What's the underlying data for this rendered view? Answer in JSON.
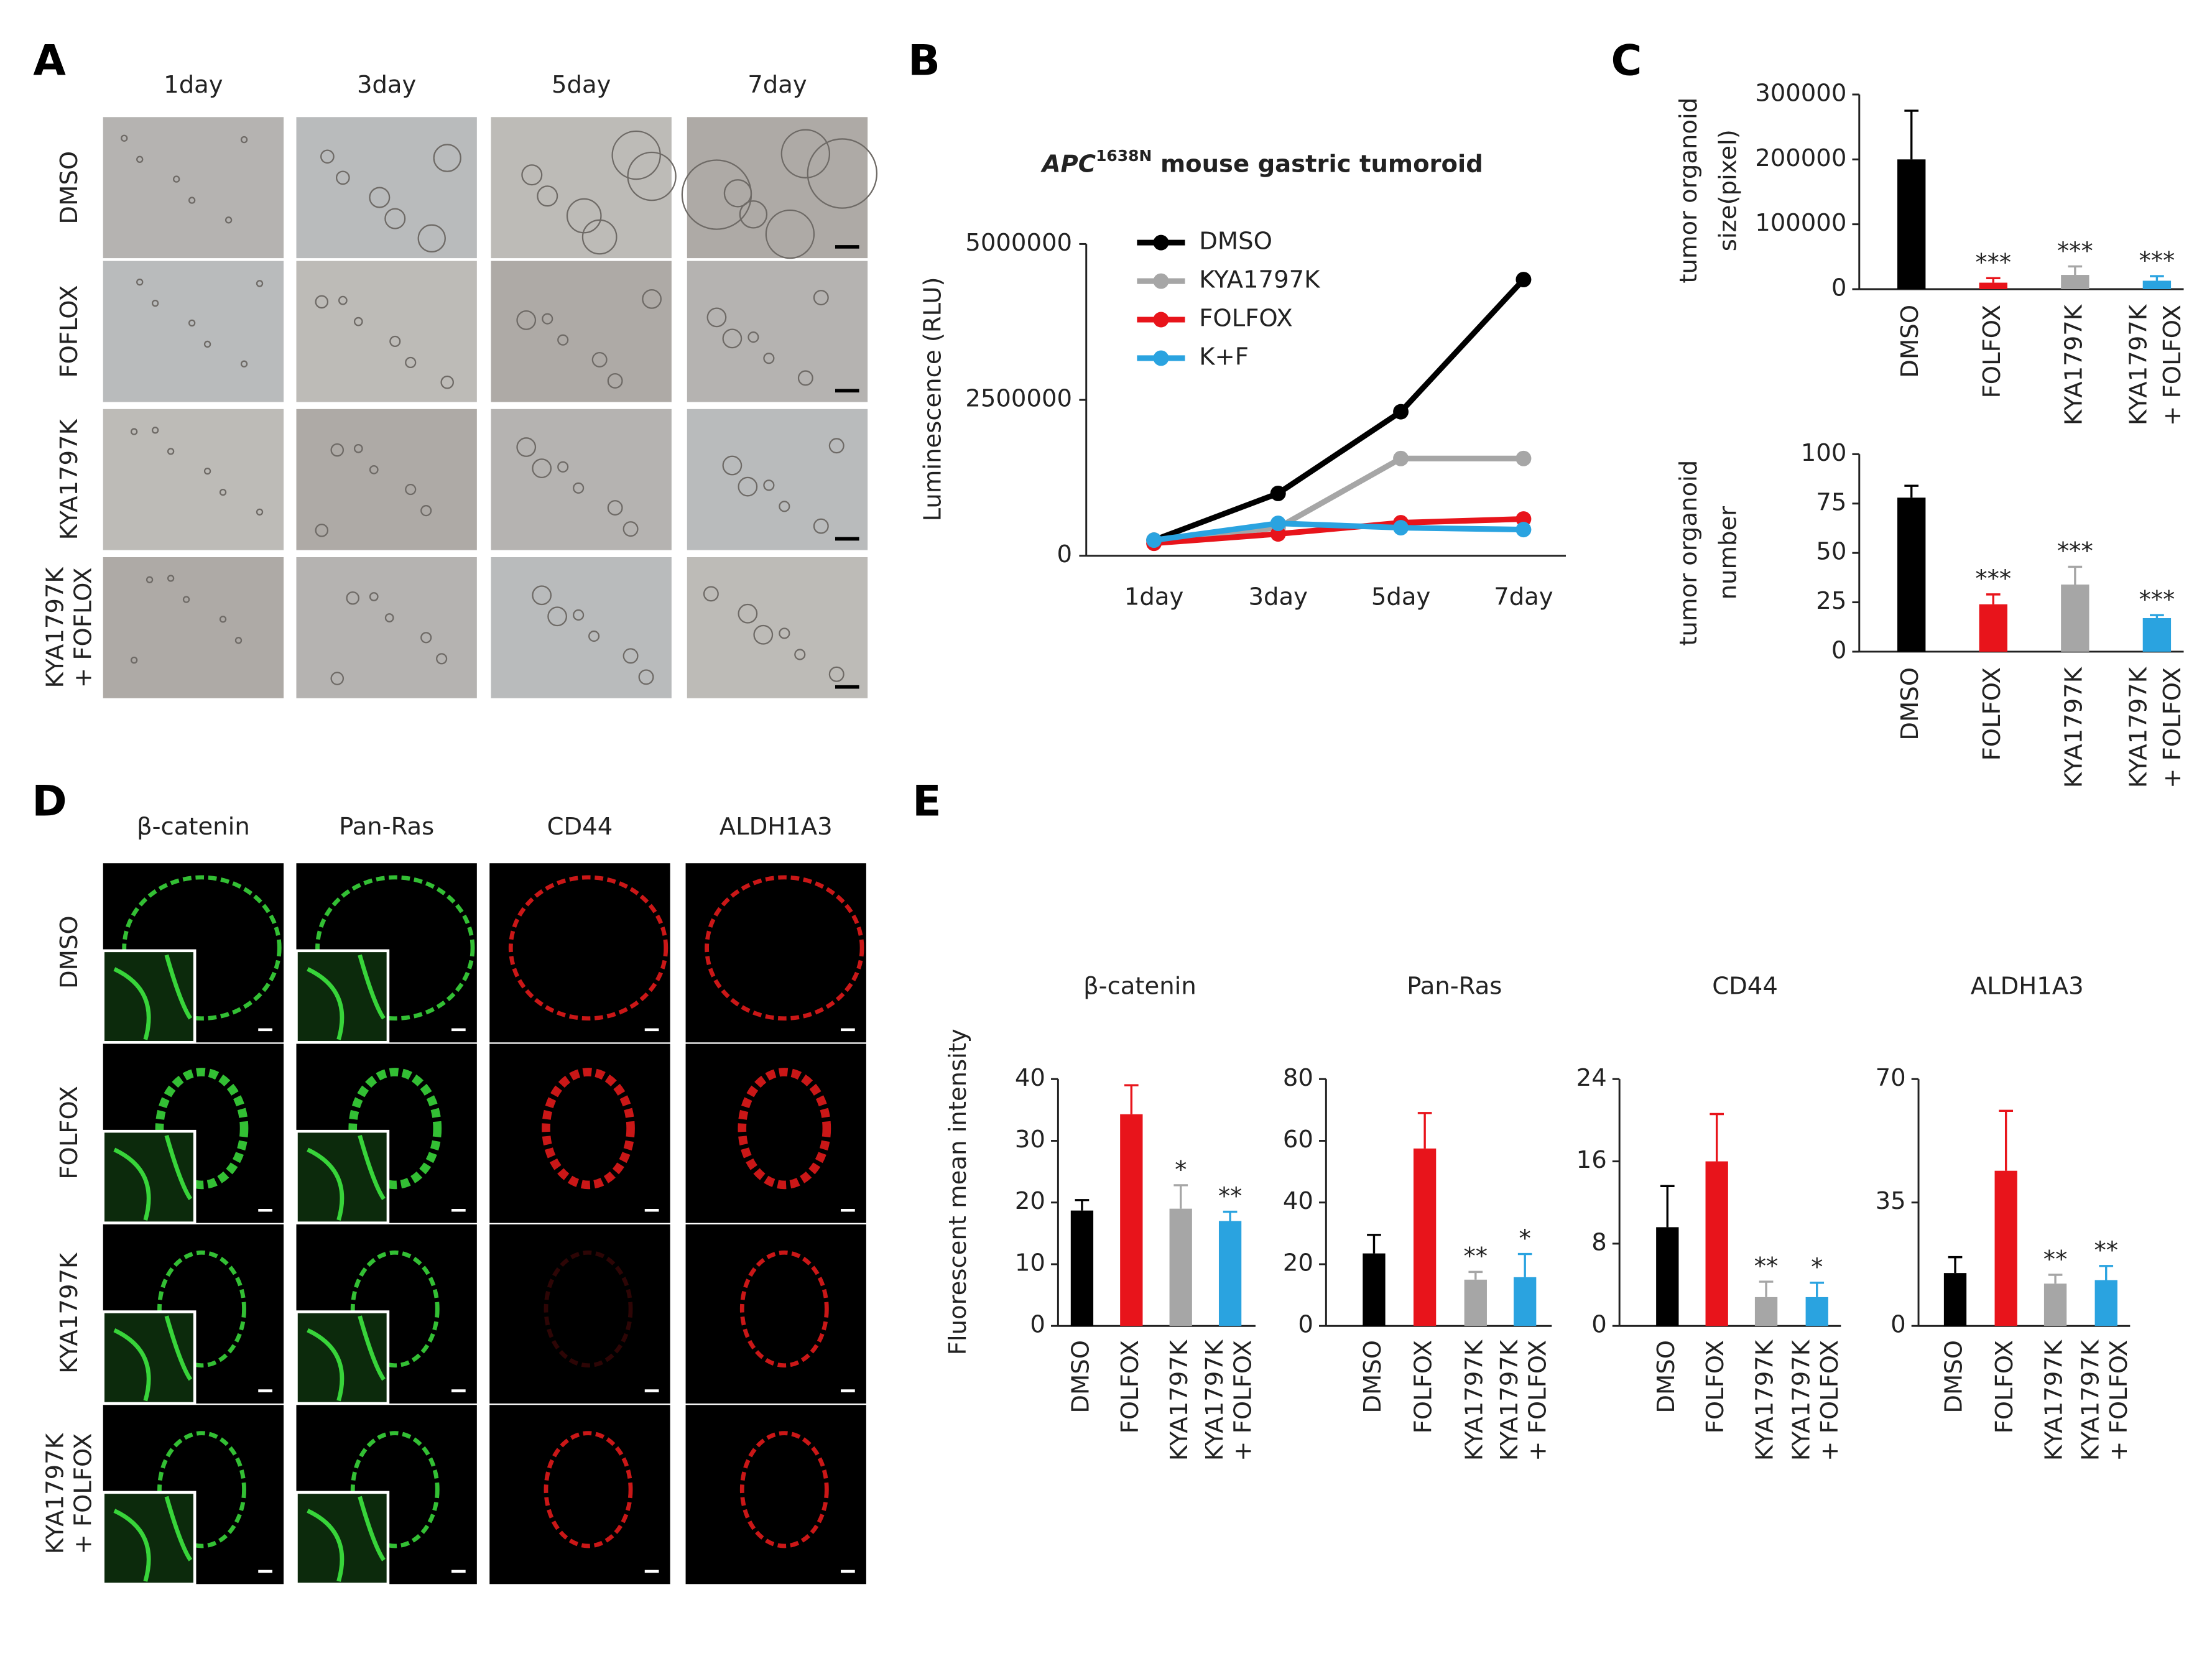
{
  "figure": {
    "panel_letters": [
      "A",
      "B",
      "C",
      "D",
      "E"
    ],
    "panel_a": {
      "columns": [
        "1day",
        "3day",
        "5day",
        "7day"
      ],
      "rows": [
        [
          "DMSO"
        ],
        [
          "FOFLOX"
        ],
        [
          "KYA1797K"
        ],
        [
          "KYA1797K",
          "+ FOFLOX"
        ]
      ]
    },
    "panel_d": {
      "columns": [
        "β-catenin",
        "Pan-Ras",
        "CD44",
        "ALDH1A3"
      ],
      "rows": [
        [
          "DMSO"
        ],
        [
          "FOLFOX"
        ],
        [
          "KYA1797K"
        ],
        [
          "KYA1797K",
          "+ FOLFOX"
        ]
      ]
    }
  },
  "chart_data": [
    {
      "type": "line",
      "title": {
        "gene": "APC",
        "allele": "1638N",
        "rest": "mouse gastric tumoroid"
      },
      "ylabel": "Luminescence (RLU)",
      "categories": [
        "1day",
        "3day",
        "5day",
        "7day"
      ],
      "ylim": [
        0,
        5000000
      ],
      "yticks": [
        0,
        2500000,
        5000000
      ],
      "series": [
        {
          "name": "DMSO",
          "color": "#000000",
          "values": [
            250000,
            1000000,
            2310000,
            4430000
          ]
        },
        {
          "name": "KYA1797K",
          "color": "#a6a6a6",
          "values": [
            250000,
            450000,
            1560000,
            1560000
          ]
        },
        {
          "name": "FOLFOX",
          "color": "#e8141b",
          "values": [
            200000,
            350000,
            530000,
            590000
          ]
        },
        {
          "name": "K+F",
          "color": "#2aa3e0",
          "values": [
            250000,
            520000,
            450000,
            420000
          ]
        }
      ]
    },
    {
      "type": "bar",
      "ylabel": [
        "tumor organoid",
        "size(pixel)"
      ],
      "categories": [
        [
          "DMSO"
        ],
        [
          "FOLFOX"
        ],
        [
          "KYA1797K"
        ],
        [
          "KYA1797K",
          "+ FOLFOX"
        ]
      ],
      "values": [
        200000,
        10000,
        22000,
        13000
      ],
      "errors": [
        75000,
        7000,
        13000,
        7000
      ],
      "significance": [
        null,
        "***",
        "***",
        "***"
      ],
      "colors": [
        "#000000",
        "#e8141b",
        "#a6a6a6",
        "#2aa3e0"
      ],
      "ylim": [
        0,
        300000
      ],
      "yticks": [
        0,
        100000,
        200000,
        300000
      ]
    },
    {
      "type": "bar",
      "ylabel": [
        "tumor organoid",
        "number"
      ],
      "categories": [
        [
          "DMSO"
        ],
        [
          "FOLFOX"
        ],
        [
          "KYA1797K"
        ],
        [
          "KYA1797K",
          "+ FOLFOX"
        ]
      ],
      "values": [
        78,
        24,
        34,
        17
      ],
      "errors": [
        6,
        5,
        9,
        1.5
      ],
      "significance": [
        null,
        "***",
        "***",
        "***"
      ],
      "colors": [
        "#000000",
        "#e8141b",
        "#a6a6a6",
        "#2aa3e0"
      ],
      "ylim": [
        0,
        100
      ],
      "yticks": [
        0,
        25,
        50,
        75,
        100
      ]
    },
    {
      "type": "bar",
      "title": "β-catenin",
      "ylabel": "Fluorescent mean intensity",
      "categories": [
        [
          "DMSO"
        ],
        [
          "FOLFOX"
        ],
        [
          "KYA1797K"
        ],
        [
          "KYA1797K",
          "+ FOLFOX"
        ]
      ],
      "values": [
        18.7,
        34.3,
        19,
        17
      ],
      "errors": [
        1.7,
        4.7,
        3.8,
        1.5
      ],
      "significance": [
        null,
        null,
        "*",
        "**"
      ],
      "colors": [
        "#000000",
        "#e8141b",
        "#a6a6a6",
        "#2aa3e0"
      ],
      "ylim": [
        0,
        40
      ],
      "yticks": [
        0,
        10,
        20,
        30,
        40
      ]
    },
    {
      "type": "bar",
      "title": "Pan-Ras",
      "categories": [
        [
          "DMSO"
        ],
        [
          "FOLFOX"
        ],
        [
          "KYA1797K"
        ],
        [
          "KYA1797K",
          "+ FOLFOX"
        ]
      ],
      "values": [
        23.5,
        57.5,
        15,
        15.8
      ],
      "errors": [
        6,
        11.5,
        2.5,
        7.5
      ],
      "significance": [
        null,
        null,
        "**",
        "*"
      ],
      "colors": [
        "#000000",
        "#e8141b",
        "#a6a6a6",
        "#2aa3e0"
      ],
      "ylim": [
        0,
        80
      ],
      "yticks": [
        0,
        20,
        40,
        60,
        80
      ]
    },
    {
      "type": "bar",
      "title": "CD44",
      "categories": [
        [
          "DMSO"
        ],
        [
          "FOLFOX"
        ],
        [
          "KYA1797K"
        ],
        [
          "KYA1797K",
          "+ FOLFOX"
        ]
      ],
      "values": [
        9.6,
        16,
        2.8,
        2.8
      ],
      "errors": [
        4,
        4.6,
        1.5,
        1.4
      ],
      "significance": [
        null,
        null,
        "**",
        "*"
      ],
      "colors": [
        "#000000",
        "#e8141b",
        "#a6a6a6",
        "#2aa3e0"
      ],
      "ylim": [
        0,
        24
      ],
      "yticks": [
        0,
        8,
        16,
        24
      ]
    },
    {
      "type": "bar",
      "title": "ALDH1A3",
      "categories": [
        [
          "DMSO"
        ],
        [
          "FOLFOX"
        ],
        [
          "KYA1797K"
        ],
        [
          "KYA1797K",
          "+ FOLFOX"
        ]
      ],
      "values": [
        15,
        44,
        12,
        13
      ],
      "errors": [
        4.5,
        17,
        2.5,
        4
      ],
      "significance": [
        null,
        null,
        "**",
        "**"
      ],
      "colors": [
        "#000000",
        "#e8141b",
        "#a6a6a6",
        "#2aa3e0"
      ],
      "ylim": [
        0,
        70
      ],
      "yticks": [
        0,
        35,
        70
      ]
    }
  ]
}
